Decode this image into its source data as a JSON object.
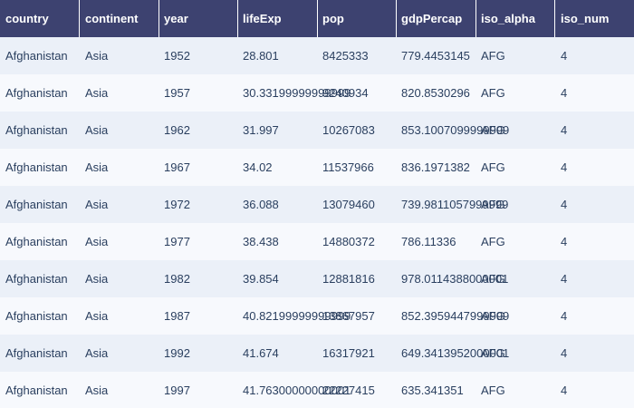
{
  "colors": {
    "header_bg": "#3d4270",
    "header_text": "#ffffff",
    "row_odd_bg": "#ebf0f8",
    "row_even_bg": "#f7f9fd",
    "cell_text": "#2a3f5f"
  },
  "table": {
    "columns": [
      "country",
      "continent",
      "year",
      "lifeExp",
      "pop",
      "gdpPercap",
      "iso_alpha",
      "iso_num"
    ],
    "rows": [
      [
        "Afghanistan",
        "Asia",
        "1952",
        "28.801",
        "8425333",
        "779.4453145",
        "AFG",
        "4"
      ],
      [
        "Afghanistan",
        "Asia",
        "1957",
        "30.33199999999999",
        "9240934",
        "820.8530296",
        "AFG",
        "4"
      ],
      [
        "Afghanistan",
        "Asia",
        "1962",
        "31.997",
        "10267083",
        "853.1007099999999",
        "AFG",
        "4"
      ],
      [
        "Afghanistan",
        "Asia",
        "1967",
        "34.02",
        "11537966",
        "836.1971382",
        "AFG",
        "4"
      ],
      [
        "Afghanistan",
        "Asia",
        "1972",
        "36.088",
        "13079460",
        "739.9811057999999",
        "AFG",
        "4"
      ],
      [
        "Afghanistan",
        "Asia",
        "1977",
        "38.438",
        "14880372",
        "786.11336",
        "AFG",
        "4"
      ],
      [
        "Afghanistan",
        "Asia",
        "1982",
        "39.854",
        "12881816",
        "978.0114388000001",
        "AFG",
        "4"
      ],
      [
        "Afghanistan",
        "Asia",
        "1987",
        "40.82199999999999",
        "13867957",
        "852.3959447999999",
        "AFG",
        "4"
      ],
      [
        "Afghanistan",
        "Asia",
        "1992",
        "41.674",
        "16317921",
        "649.3413952000001",
        "AFG",
        "4"
      ],
      [
        "Afghanistan",
        "Asia",
        "1997",
        "41.76300000000001",
        "22227415",
        "635.341351",
        "AFG",
        "4"
      ]
    ]
  }
}
